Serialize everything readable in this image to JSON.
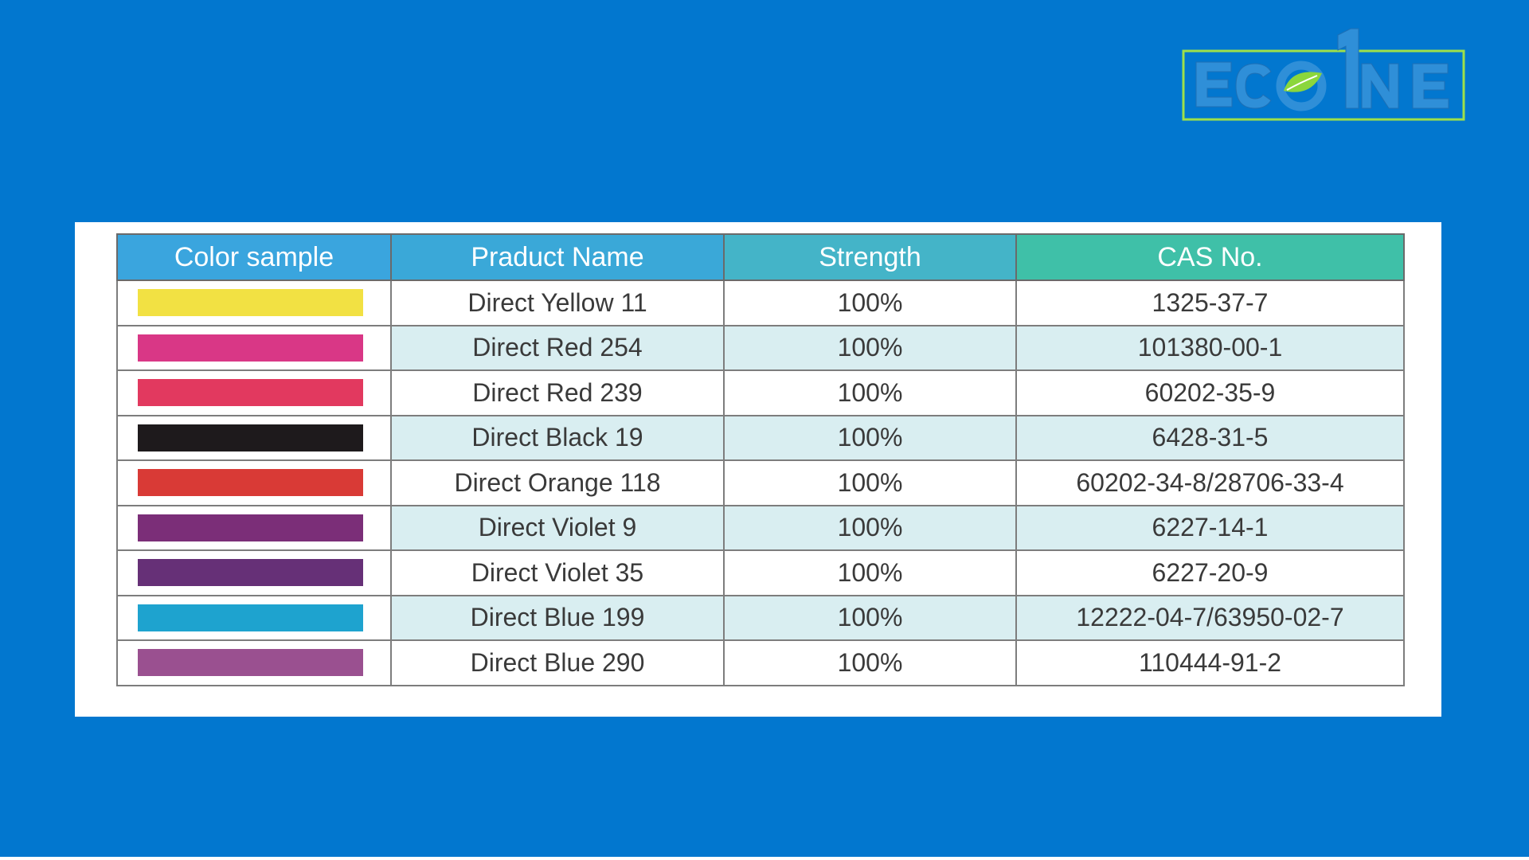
{
  "logo": {
    "text": "ECO1NE",
    "colors": {
      "outline": "#9ee04a",
      "leaf": "#8bd63c",
      "text_fill": "#2f8fd8"
    }
  },
  "table": {
    "headers": [
      "Color sample",
      "Praduct Name",
      "Strength",
      "CAS No."
    ],
    "rows": [
      {
        "swatch": "#f2e143",
        "name": "Direct Yellow 11",
        "strength": "100%",
        "cas": "1325-37-7"
      },
      {
        "swatch": "#d93786",
        "name": "Direct Red 254",
        "strength": "100%",
        "cas": "101380-00-1"
      },
      {
        "swatch": "#e2395f",
        "name": "Direct Red 239",
        "strength": "100%",
        "cas": "60202-35-9"
      },
      {
        "swatch": "#1e1a1c",
        "name": "Direct Black 19",
        "strength": "100%",
        "cas": "6428-31-5"
      },
      {
        "swatch": "#d93a36",
        "name": "Direct Orange 118",
        "strength": "100%",
        "cas": "60202-34-8/28706-33-4"
      },
      {
        "swatch": "#7b2e78",
        "name": "Direct Violet 9",
        "strength": "100%",
        "cas": "6227-14-1"
      },
      {
        "swatch": "#663077",
        "name": "Direct Violet 35",
        "strength": "100%",
        "cas": "6227-20-9"
      },
      {
        "swatch": "#1ea3cf",
        "name": "Direct Blue 199",
        "strength": "100%",
        "cas": "12222-04-7/63950-02-7"
      },
      {
        "swatch": "#9a5090",
        "name": "Direct Blue 290",
        "strength": "100%",
        "cas": "110444-91-2"
      }
    ]
  }
}
